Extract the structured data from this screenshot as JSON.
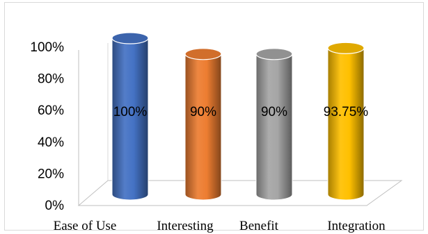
{
  "chart_data": {
    "type": "bar",
    "categories": [
      "Ease of Use",
      "Interesting",
      "Benefit",
      "Integration"
    ],
    "values": [
      100,
      90,
      90,
      93.75
    ],
    "data_labels": [
      "100%",
      "90%",
      "90%",
      "93.75%"
    ],
    "y_ticks": [
      "0%",
      "20%",
      "40%",
      "60%",
      "80%",
      "100%"
    ],
    "ylim": [
      0,
      100
    ],
    "bar_style": "3d-cylinder",
    "grid": false,
    "colors": [
      "#4472C4",
      "#ED7D31",
      "#A5A5A5",
      "#FFC000"
    ]
  }
}
